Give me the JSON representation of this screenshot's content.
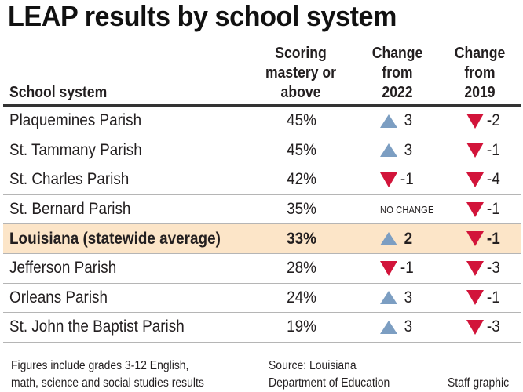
{
  "title": "LEAP results by school system",
  "headers": {
    "system": "School system",
    "mastery": [
      "Scoring",
      "mastery or",
      "above"
    ],
    "change2022": [
      "Change",
      "from",
      "2022"
    ],
    "change2019": [
      "Change",
      "from",
      "2019"
    ]
  },
  "colors": {
    "up": "#7c9ec2",
    "down": "#d2143a",
    "highlight": "#fce5c8"
  },
  "rows": [
    {
      "name": "Plaquemines Parish",
      "pct": "45%",
      "c2022": "3",
      "c2022_dir": "up",
      "c2019": "-2",
      "c2019_dir": "down"
    },
    {
      "name": "St. Tammany Parish",
      "pct": "45%",
      "c2022": "3",
      "c2022_dir": "up",
      "c2019": "-1",
      "c2019_dir": "down"
    },
    {
      "name": "St. Charles Parish",
      "pct": "42%",
      "c2022": "-1",
      "c2022_dir": "down",
      "c2019": "-4",
      "c2019_dir": "down"
    },
    {
      "name": "St. Bernard Parish",
      "pct": "35%",
      "c2022": "NO CHANGE",
      "c2022_dir": "none",
      "c2019": "-1",
      "c2019_dir": "down"
    },
    {
      "name": "Louisiana (statewide average)",
      "pct": "33%",
      "c2022": "2",
      "c2022_dir": "up",
      "c2019": "-1",
      "c2019_dir": "down",
      "highlight": true
    },
    {
      "name": "Jefferson Parish",
      "pct": "28%",
      "c2022": "-1",
      "c2022_dir": "down",
      "c2019": "-3",
      "c2019_dir": "down"
    },
    {
      "name": "Orleans Parish",
      "pct": "24%",
      "c2022": "3",
      "c2022_dir": "up",
      "c2019": "-1",
      "c2019_dir": "down"
    },
    {
      "name": "St. John the Baptist Parish",
      "pct": "19%",
      "c2022": "3",
      "c2022_dir": "up",
      "c2019": "-3",
      "c2019_dir": "down"
    }
  ],
  "footer": {
    "note": [
      "Figures include grades 3-12 English,",
      "math, science and social studies results"
    ],
    "source": [
      "Source: Louisiana",
      "Department of Education"
    ],
    "credit": "Staff graphic"
  },
  "chart_data": {
    "type": "table",
    "title": "LEAP results by school system",
    "columns": [
      "School system",
      "Scoring mastery or above",
      "Change from 2022",
      "Change from 2019"
    ],
    "rows": [
      [
        "Plaquemines Parish",
        45,
        3,
        -2
      ],
      [
        "St. Tammany Parish",
        45,
        3,
        -1
      ],
      [
        "St. Charles Parish",
        42,
        -1,
        -4
      ],
      [
        "St. Bernard Parish",
        35,
        0,
        -1
      ],
      [
        "Louisiana (statewide average)",
        33,
        2,
        -1
      ],
      [
        "Jefferson Parish",
        28,
        -1,
        -3
      ],
      [
        "Orleans Parish",
        24,
        3,
        -1
      ],
      [
        "St. John the Baptist Parish",
        19,
        3,
        -3
      ]
    ],
    "units": {
      "Scoring mastery or above": "%"
    },
    "annotations": [
      "Figures include grades 3-12 English, math, science and social studies results",
      "Source: Louisiana Department of Education",
      "Staff graphic"
    ]
  }
}
